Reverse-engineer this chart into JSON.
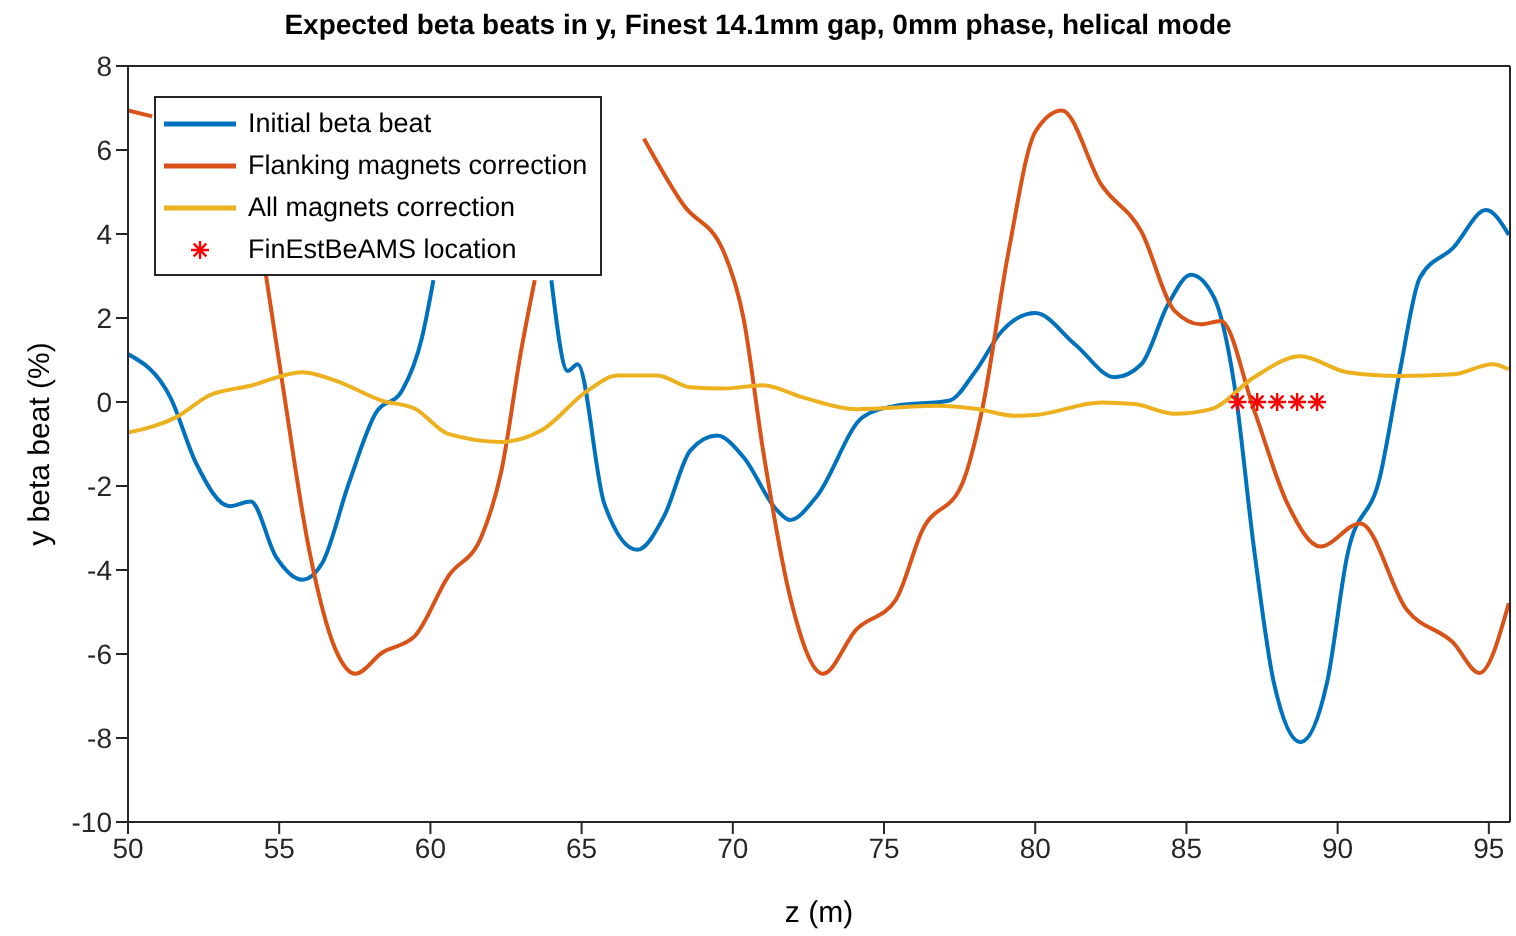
{
  "chart_data": {
    "type": "line",
    "title": "Expected beta beats in y, Finest 14.1mm gap, 0mm phase, helical mode",
    "xlabel": "z (m)",
    "ylabel": "y beta beat (%)",
    "xlim": [
      50,
      95.7
    ],
    "xticks": [
      50,
      55,
      60,
      65,
      70,
      75,
      80,
      85,
      90,
      95
    ],
    "ylim": [
      -10,
      8
    ],
    "yticks": [
      -10,
      -8,
      -6,
      -4,
      -2,
      0,
      2,
      4,
      6,
      8
    ],
    "grid": false,
    "legend": "top left",
    "line_style": "solid",
    "series": [
      {
        "name": "Initial beta beat",
        "color": "#0072bd",
        "x": [
          50.0,
          51.4,
          52.26,
          53.36,
          54.06,
          54.89,
          55.77,
          56.42,
          57.3,
          58.18,
          59.06,
          59.72,
          60.1,
          62.0,
          64.0,
          64.54,
          64.87,
          65.75,
          66.84,
          67.72,
          68.6,
          69.47,
          70.35,
          71.45,
          71.89,
          72.76,
          74.3,
          75.39,
          77.15,
          78.03,
          78.9,
          80.0,
          81.32,
          82.63,
          83.51,
          84.39,
          85.15,
          85.92,
          86.58,
          87.24,
          87.89,
          88.77,
          89.65,
          90.31,
          91.4,
          92.06,
          92.72,
          93.82,
          94.91,
          95.66
        ],
        "values": [
          1.14,
          0.11,
          -1.47,
          -2.48,
          -2.37,
          -3.68,
          -4.23,
          -3.84,
          -1.94,
          -0.28,
          0.27,
          1.53,
          2.9,
          null,
          2.9,
          0.74,
          0.9,
          -2.42,
          -3.52,
          -2.73,
          -1.15,
          -0.8,
          -1.31,
          -2.57,
          -2.81,
          -2.26,
          -0.36,
          -0.09,
          0.03,
          0.74,
          1.69,
          2.12,
          1.37,
          0.59,
          0.9,
          2.32,
          3.03,
          2.48,
          0.43,
          -3.52,
          -6.68,
          -8.1,
          -6.68,
          -3.68,
          -1.78,
          0.74,
          2.96,
          3.67,
          4.57,
          3.98
        ]
      },
      {
        "name": "Flanking magnets correction",
        "color": "#d95319",
        "x": [
          50.0,
          50.8,
          52.8,
          54.56,
          55.11,
          55.99,
          56.86,
          57.52,
          58.4,
          59.49,
          60.59,
          61.69,
          62.35,
          63.0,
          63.45,
          65.3,
          67.06,
          68.37,
          69.69,
          70.35,
          71.0,
          71.89,
          72.98,
          74.08,
          75.39,
          76.27,
          77.59,
          78.24,
          79.12,
          80.0,
          80.88,
          82.19,
          83.51,
          84.61,
          85.48,
          86.14,
          87.24,
          88.34,
          89.43,
          90.75,
          92.28,
          93.82,
          94.69,
          95.66
        ],
        "values": [
          6.94,
          6.8,
          null,
          3.03,
          0.43,
          -3.52,
          -5.89,
          -6.47,
          -5.97,
          -5.57,
          -4.15,
          -3.2,
          -1.63,
          1.22,
          2.9,
          null,
          6.27,
          4.69,
          3.59,
          2.01,
          -1.15,
          -4.63,
          -6.47,
          -5.42,
          -4.71,
          -3.05,
          -1.94,
          -0.2,
          3.59,
          6.43,
          6.94,
          5.17,
          4.06,
          2.17,
          1.85,
          1.93,
          -0.2,
          -2.42,
          -3.44,
          -2.89,
          -4.94,
          -5.73,
          -6.45,
          -4.79
        ]
      },
      {
        "name": "All magnets correction",
        "color": "#edb120",
        "x": [
          50.0,
          51.6,
          52.7,
          54.01,
          55.77,
          56.86,
          58.4,
          59.49,
          60.59,
          62.35,
          63.66,
          65.2,
          66.18,
          67.5,
          68.6,
          69.69,
          71.0,
          72.32,
          74.08,
          76.71,
          78.03,
          79.34,
          80.0,
          82.19,
          83.29,
          84.61,
          85.81,
          87.24,
          88.77,
          90.31,
          92.06,
          93.82,
          95.13,
          95.66
        ],
        "values": [
          -0.73,
          -0.36,
          0.16,
          0.38,
          0.71,
          0.51,
          0.03,
          -0.16,
          -0.76,
          -0.95,
          -0.68,
          0.27,
          0.63,
          0.63,
          0.35,
          0.32,
          0.4,
          0.11,
          -0.17,
          -0.09,
          -0.16,
          -0.33,
          -0.31,
          -0.01,
          -0.05,
          -0.28,
          -0.17,
          0.59,
          1.09,
          0.71,
          0.62,
          0.66,
          0.9,
          0.78
        ]
      },
      {
        "name": "FinEstBeAMS location",
        "type": "scatter",
        "marker": "cross",
        "color": "#ff0000",
        "x": [
          86.69,
          87.34,
          88.0,
          88.66,
          89.32
        ],
        "values": [
          0,
          0,
          0,
          0,
          0
        ]
      }
    ]
  }
}
